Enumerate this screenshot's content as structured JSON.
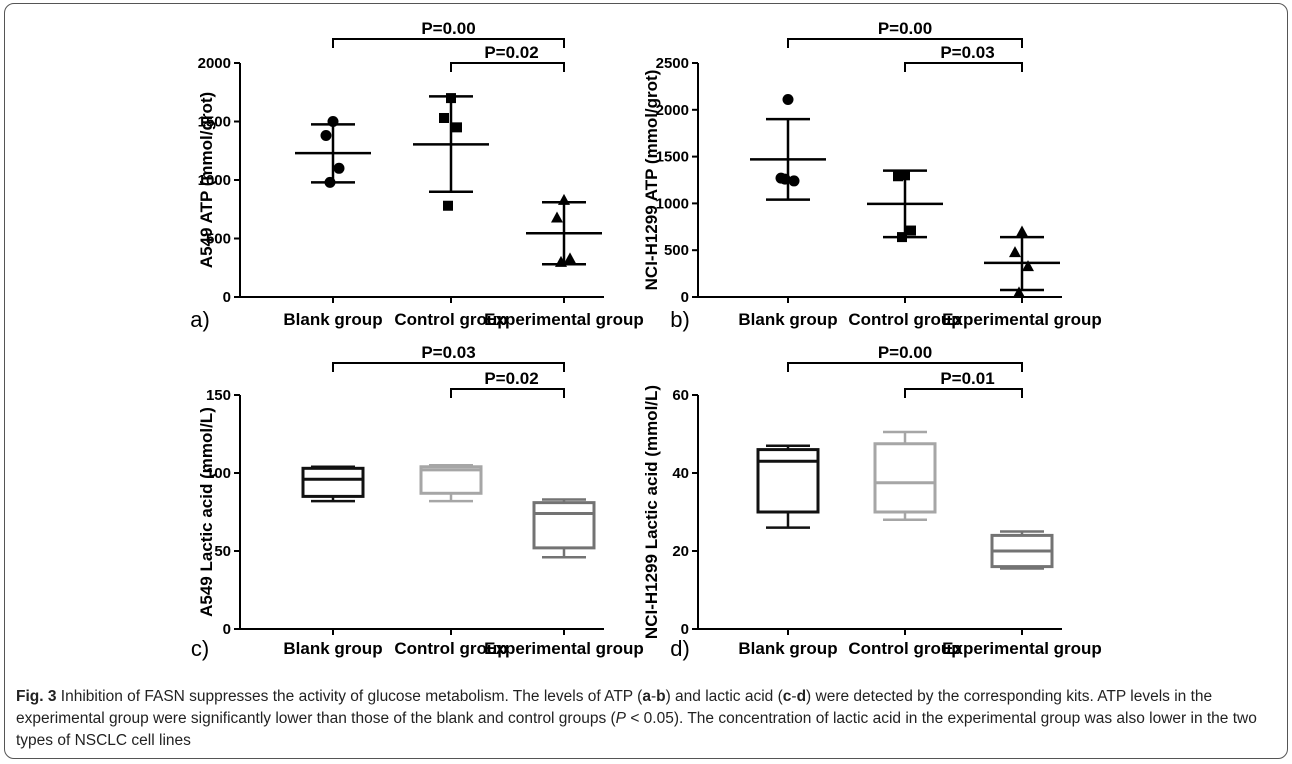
{
  "figure": {
    "caption_label": "Fig. 3",
    "caption_segments": [
      {
        "t": " Inhibition of FASN suppresses the activity of glucose metabolism. The levels of ATP (",
        "b": false,
        "i": false
      },
      {
        "t": "a",
        "b": true,
        "i": false
      },
      {
        "t": "-",
        "b": false,
        "i": false
      },
      {
        "t": "b",
        "b": true,
        "i": false
      },
      {
        "t": ") and lactic acid (",
        "b": false,
        "i": false
      },
      {
        "t": "c",
        "b": true,
        "i": false
      },
      {
        "t": "-",
        "b": false,
        "i": false
      },
      {
        "t": "d",
        "b": true,
        "i": false
      },
      {
        "t": ") were detected by the corresponding kits. ATP levels in the experimental group were significantly lower than those of the blank and control groups (",
        "b": false,
        "i": false
      },
      {
        "t": "P",
        "b": false,
        "i": true
      },
      {
        "t": " < 0.05). The concentration of lactic acid in the experimental group was also lower in the two types of NSCLC cell lines",
        "b": false,
        "i": false
      }
    ]
  },
  "chart_data": [
    {
      "type": "scatter",
      "panel_label": "a)",
      "ylabel": "A549 ATP (mmol/grot)",
      "ylim": [
        0,
        2000
      ],
      "yticks": [
        0,
        500,
        1000,
        1500,
        2000
      ],
      "categories": [
        "Blank group",
        "Control group",
        "Experimental group"
      ],
      "series": [
        {
          "marker": "circle",
          "points": [
            1500,
            1380,
            1100,
            980
          ],
          "mean": 1230,
          "sd_low": 980,
          "sd_high": 1475
        },
        {
          "marker": "square",
          "points": [
            1700,
            1530,
            1450,
            780
          ],
          "mean": 1305,
          "sd_low": 900,
          "sd_high": 1715
        },
        {
          "marker": "triangle",
          "points": [
            830,
            680,
            330,
            300
          ],
          "mean": 545,
          "sd_low": 280,
          "sd_high": 810
        }
      ],
      "comparisons": [
        {
          "from": 0,
          "to": 2,
          "label": "P=0.00",
          "level": 1
        },
        {
          "from": 1,
          "to": 2,
          "label": "P=0.02",
          "level": 0
        }
      ]
    },
    {
      "type": "scatter",
      "panel_label": "b)",
      "ylabel": "NCI-H1299 ATP (mmol/grot)",
      "ylim": [
        0,
        2500
      ],
      "yticks": [
        0,
        500,
        1000,
        1500,
        2000,
        2500
      ],
      "categories": [
        "Blank group",
        "Control group",
        "Experimental group"
      ],
      "series": [
        {
          "marker": "circle",
          "points": [
            2110,
            1270,
            1240,
            1260
          ],
          "mean": 1470,
          "sd_low": 1040,
          "sd_high": 1900
        },
        {
          "marker": "square",
          "points": [
            1300,
            1290,
            710,
            640
          ],
          "mean": 995,
          "sd_low": 640,
          "sd_high": 1350
        },
        {
          "marker": "triangle",
          "points": [
            700,
            480,
            330,
            50
          ],
          "mean": 365,
          "sd_low": 75,
          "sd_high": 640
        }
      ],
      "comparisons": [
        {
          "from": 0,
          "to": 2,
          "label": "P=0.00",
          "level": 1
        },
        {
          "from": 1,
          "to": 2,
          "label": "P=0.03",
          "level": 0
        }
      ]
    },
    {
      "type": "box",
      "panel_label": "c)",
      "ylabel": "A549 Lactic acid (mmol/L)",
      "ylim": [
        0,
        150
      ],
      "yticks": [
        0,
        50,
        100,
        150
      ],
      "categories": [
        "Blank group",
        "Control group",
        "Experimental group"
      ],
      "colors": [
        "#111111",
        "#a6a6a6",
        "#737373"
      ],
      "boxes": [
        {
          "min": 82,
          "q1": 85,
          "median": 96,
          "q3": 103,
          "max": 104
        },
        {
          "min": 82,
          "q1": 87,
          "median": 102,
          "q3": 104,
          "max": 105
        },
        {
          "min": 46,
          "q1": 52,
          "median": 74,
          "q3": 81,
          "max": 83
        }
      ],
      "comparisons": [
        {
          "from": 0,
          "to": 2,
          "label": "P=0.03",
          "level": 1
        },
        {
          "from": 1,
          "to": 2,
          "label": "P=0.02",
          "level": 0
        }
      ]
    },
    {
      "type": "box",
      "panel_label": "d)",
      "ylabel": "NCI-H1299 Lactic acid (mmol/L)",
      "ylim": [
        0,
        60
      ],
      "yticks": [
        0,
        20,
        40,
        60
      ],
      "categories": [
        "Blank group",
        "Control group",
        "Experimental group"
      ],
      "colors": [
        "#111111",
        "#a6a6a6",
        "#737373"
      ],
      "boxes": [
        {
          "min": 26,
          "q1": 30,
          "median": 43,
          "q3": 46,
          "max": 47
        },
        {
          "min": 28,
          "q1": 30,
          "median": 37.5,
          "q3": 47.5,
          "max": 50.5
        },
        {
          "min": 15.5,
          "q1": 16,
          "median": 20,
          "q3": 24,
          "max": 25
        }
      ],
      "comparisons": [
        {
          "from": 0,
          "to": 2,
          "label": "P=0.00",
          "level": 1
        },
        {
          "from": 1,
          "to": 2,
          "label": "P=0.01",
          "level": 0
        }
      ]
    }
  ]
}
